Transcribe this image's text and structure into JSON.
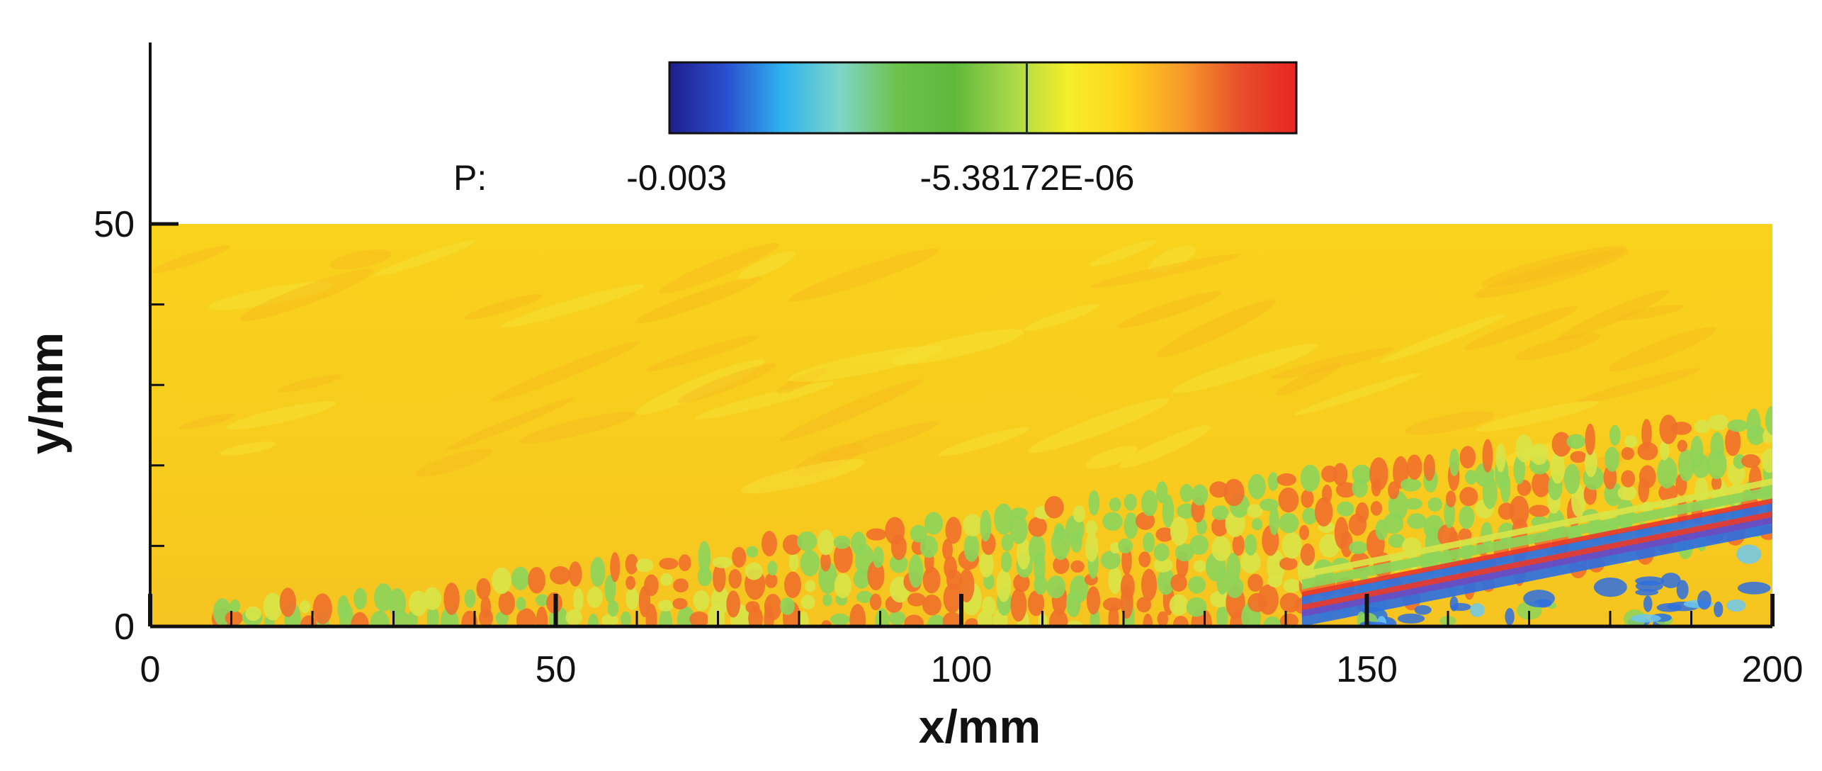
{
  "chart_data": {
    "type": "heatmap",
    "title": "",
    "xlabel": "x/mm",
    "ylabel": "y/mm",
    "xlim": [
      0,
      200
    ],
    "ylim": [
      0,
      57
    ],
    "domain_ymax": 50,
    "x_ticks": [
      0,
      50,
      100,
      150,
      200
    ],
    "x_tick_labels": [
      "0",
      "50",
      "100",
      "150",
      "200"
    ],
    "y_ticks": [
      0,
      50
    ],
    "y_tick_labels": [
      "0",
      "50"
    ],
    "colorbar": {
      "variable_label": "P:",
      "tick_labels": [
        "-0.003",
        "-5.38172E-06"
      ],
      "colormap": [
        "#1e1e8c",
        "#2a4fd0",
        "#2fb4f0",
        "#7fd6c8",
        "#6cc24a",
        "#5fb83c",
        "#a8d84a",
        "#f5ee2a",
        "#ffd21a",
        "#f79a2a",
        "#e8502a",
        "#e82424"
      ],
      "marker_fraction": 0.57
    },
    "colors": {
      "background": "#f8cf1c",
      "orange": "#f0702a",
      "green": "#8cd45a",
      "yellow_green": "#d8e448",
      "blue": "#2e6fe0",
      "red": "#e83a2a",
      "purple": "#6a4cc0"
    }
  }
}
